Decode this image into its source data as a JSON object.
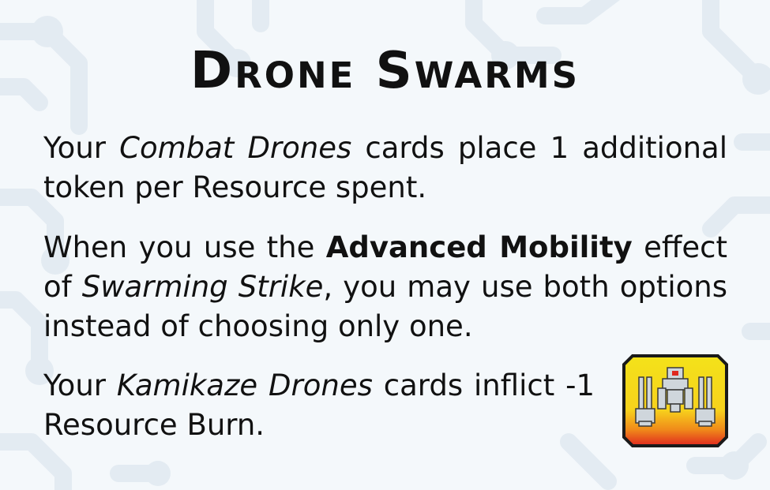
{
  "card": {
    "title": "Drone Swarms",
    "paragraphs": [
      {
        "parts": [
          {
            "text": "Your ",
            "style": "normal"
          },
          {
            "text": "Combat Drones",
            "style": "italic"
          },
          {
            "text": " cards place 1 additional token per Resource spent.",
            "style": "normal"
          }
        ]
      },
      {
        "parts": [
          {
            "text": "When you use the ",
            "style": "normal"
          },
          {
            "text": "Advanced Mobility",
            "style": "bold"
          },
          {
            "text": " effect of ",
            "style": "normal"
          },
          {
            "text": "Swarming Strike",
            "style": "italic"
          },
          {
            "text": ", you may use both options instead of choosing only one.",
            "style": "normal"
          }
        ]
      },
      {
        "parts": [
          {
            "text": "Your ",
            "style": "normal"
          },
          {
            "text": "Kamikaze Drones",
            "style": "italic"
          },
          {
            "text": " cards inflict -1 Resource Burn.",
            "style": "normal"
          }
        ]
      }
    ],
    "icon": "drone-swarm-unit-icon",
    "colors": {
      "background": "#f4f8fb",
      "circuit": "#e3ebf2",
      "text": "#111111",
      "icon_top": "#f3e21a",
      "icon_bottom": "#e0281f",
      "icon_border": "#1a1a1a"
    }
  }
}
